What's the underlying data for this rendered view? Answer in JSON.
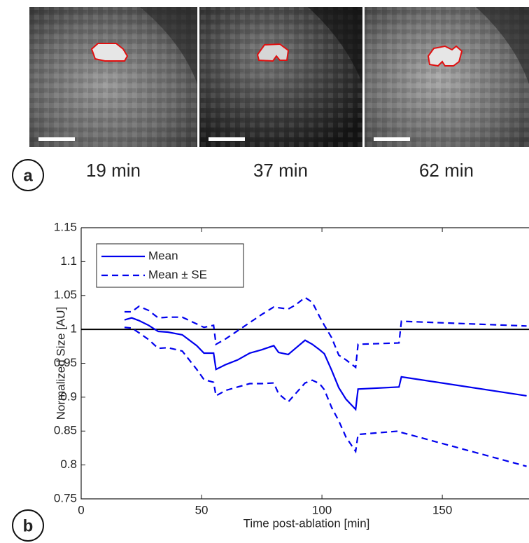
{
  "panels": {
    "a": "a",
    "b": "b"
  },
  "images": [
    {
      "label": "19 min"
    },
    {
      "label": "37 min"
    },
    {
      "label": "62 min"
    }
  ],
  "chart_data": {
    "type": "line",
    "xlabel": "Time post-ablation [min]",
    "ylabel": "Normalized Size [AU]",
    "x": [
      18,
      21,
      24,
      28,
      32,
      36,
      42,
      48,
      51,
      55,
      56,
      60,
      65,
      70,
      75,
      80,
      82,
      86,
      89,
      93,
      96,
      99,
      101,
      104,
      107,
      110,
      114,
      115,
      132,
      133,
      185
    ],
    "series": [
      {
        "name": "Mean",
        "color": "#0000ee",
        "dash": false,
        "values": [
          1.014,
          1.017,
          1.013,
          1.006,
          0.997,
          0.996,
          0.992,
          0.976,
          0.965,
          0.965,
          0.941,
          0.948,
          0.955,
          0.965,
          0.97,
          0.976,
          0.966,
          0.963,
          0.972,
          0.984,
          0.978,
          0.97,
          0.964,
          0.94,
          0.914,
          0.897,
          0.882,
          0.912,
          0.915,
          0.93,
          0.902
        ]
      },
      {
        "name": "Mean ± SE",
        "color": "#0000ee",
        "dash": true,
        "upper": [
          1.026,
          1.026,
          1.034,
          1.028,
          1.017,
          1.018,
          1.018,
          1.008,
          1.003,
          1.006,
          0.978,
          0.986,
          0.998,
          1.01,
          1.022,
          1.033,
          1.032,
          1.03,
          1.036,
          1.047,
          1.04,
          1.019,
          1.006,
          0.988,
          0.962,
          0.955,
          0.944,
          0.978,
          0.98,
          1.012,
          1.005
        ],
        "lower": [
          1.003,
          1.002,
          0.995,
          0.985,
          0.972,
          0.973,
          0.968,
          0.941,
          0.926,
          0.922,
          0.902,
          0.91,
          0.915,
          0.92,
          0.92,
          0.921,
          0.905,
          0.893,
          0.905,
          0.921,
          0.925,
          0.92,
          0.911,
          0.885,
          0.865,
          0.841,
          0.82,
          0.845,
          0.85,
          0.848,
          0.798
        ]
      }
    ],
    "reference_line": 1,
    "xlim": [
      0,
      186
    ],
    "xticks": [
      0,
      50,
      100,
      150
    ],
    "ylim": [
      0.75,
      1.15
    ],
    "yticks": [
      0.75,
      0.8,
      0.85,
      0.9,
      0.95,
      1,
      1.05,
      1.1,
      1.15
    ],
    "legend": "upper left"
  }
}
